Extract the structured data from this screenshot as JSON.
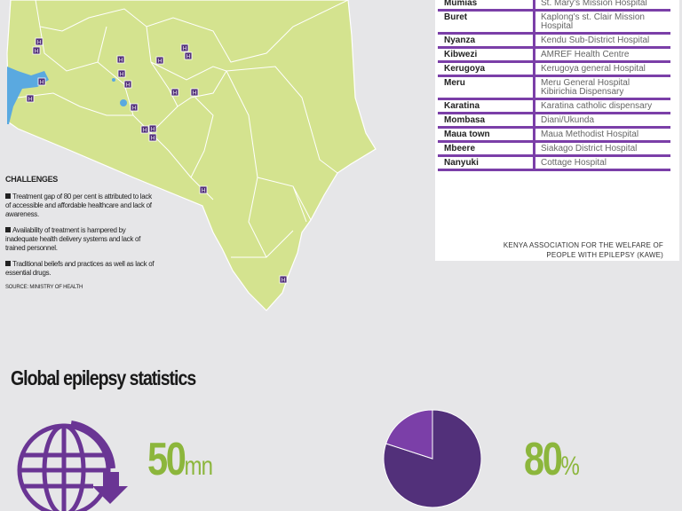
{
  "challenges": {
    "title": "CHALLENGES",
    "items": [
      "Treatment gap of 80 per cent is attributed to lack of accessible and affordable healthcare and lack of awareness.",
      "Availability of treatment is hampered by inadequate health delivery systems and lack of trained personnel.",
      "Traditional beliefs and practices as well as lack of essential drugs."
    ],
    "source": "SOURCE: MINISTRY OF HEALTH"
  },
  "clinics": [
    {
      "town": "Mumias",
      "hospital": "St. Mary's Mission Hospital"
    },
    {
      "town": "Buret",
      "hospital": "Kaplong's st. Clair Mission Hospital"
    },
    {
      "town": "Nyanza",
      "hospital": "Kendu Sub-District Hospital"
    },
    {
      "town": "Kibwezi",
      "hospital": "AMREF Health Centre"
    },
    {
      "town": "Kerugoya",
      "hospital": "Kerugoya general Hospital"
    },
    {
      "town": "Meru",
      "hospital": "Meru General Hospital Kibirichia Dispensary"
    },
    {
      "town": "Karatina",
      "hospital": "Karatina catholic dispensary"
    },
    {
      "town": "Mombasa",
      "hospital": "Diani/Ukunda"
    },
    {
      "town": "Maua town",
      "hospital": "Maua Methodist Hospital"
    },
    {
      "town": "Mbeere",
      "hospital": "Siakago District Hospital"
    },
    {
      "town": "Nanyuki",
      "hospital": "Cottage Hospital"
    }
  ],
  "table_footer": {
    "line1": "KENYA ASSOCIATION FOR THE WELFARE OF",
    "line2": "PEOPLE WITH EPILEPSY (KAWE)"
  },
  "map": {
    "marker_label": "H",
    "marker_count": 18
  },
  "global": {
    "title": "Global epilepsy statistics",
    "stat1": {
      "value": "50",
      "unit": "mn",
      "icon": "globe-download-icon"
    },
    "stat2": {
      "value": "80",
      "unit": "%",
      "pie_fraction": 0.8
    }
  },
  "colors": {
    "map": "#d4e38f",
    "purple": "#52307a",
    "purple_light": "#7b3fa8",
    "green": "#8cb63c",
    "water": "#5aa9e0"
  }
}
